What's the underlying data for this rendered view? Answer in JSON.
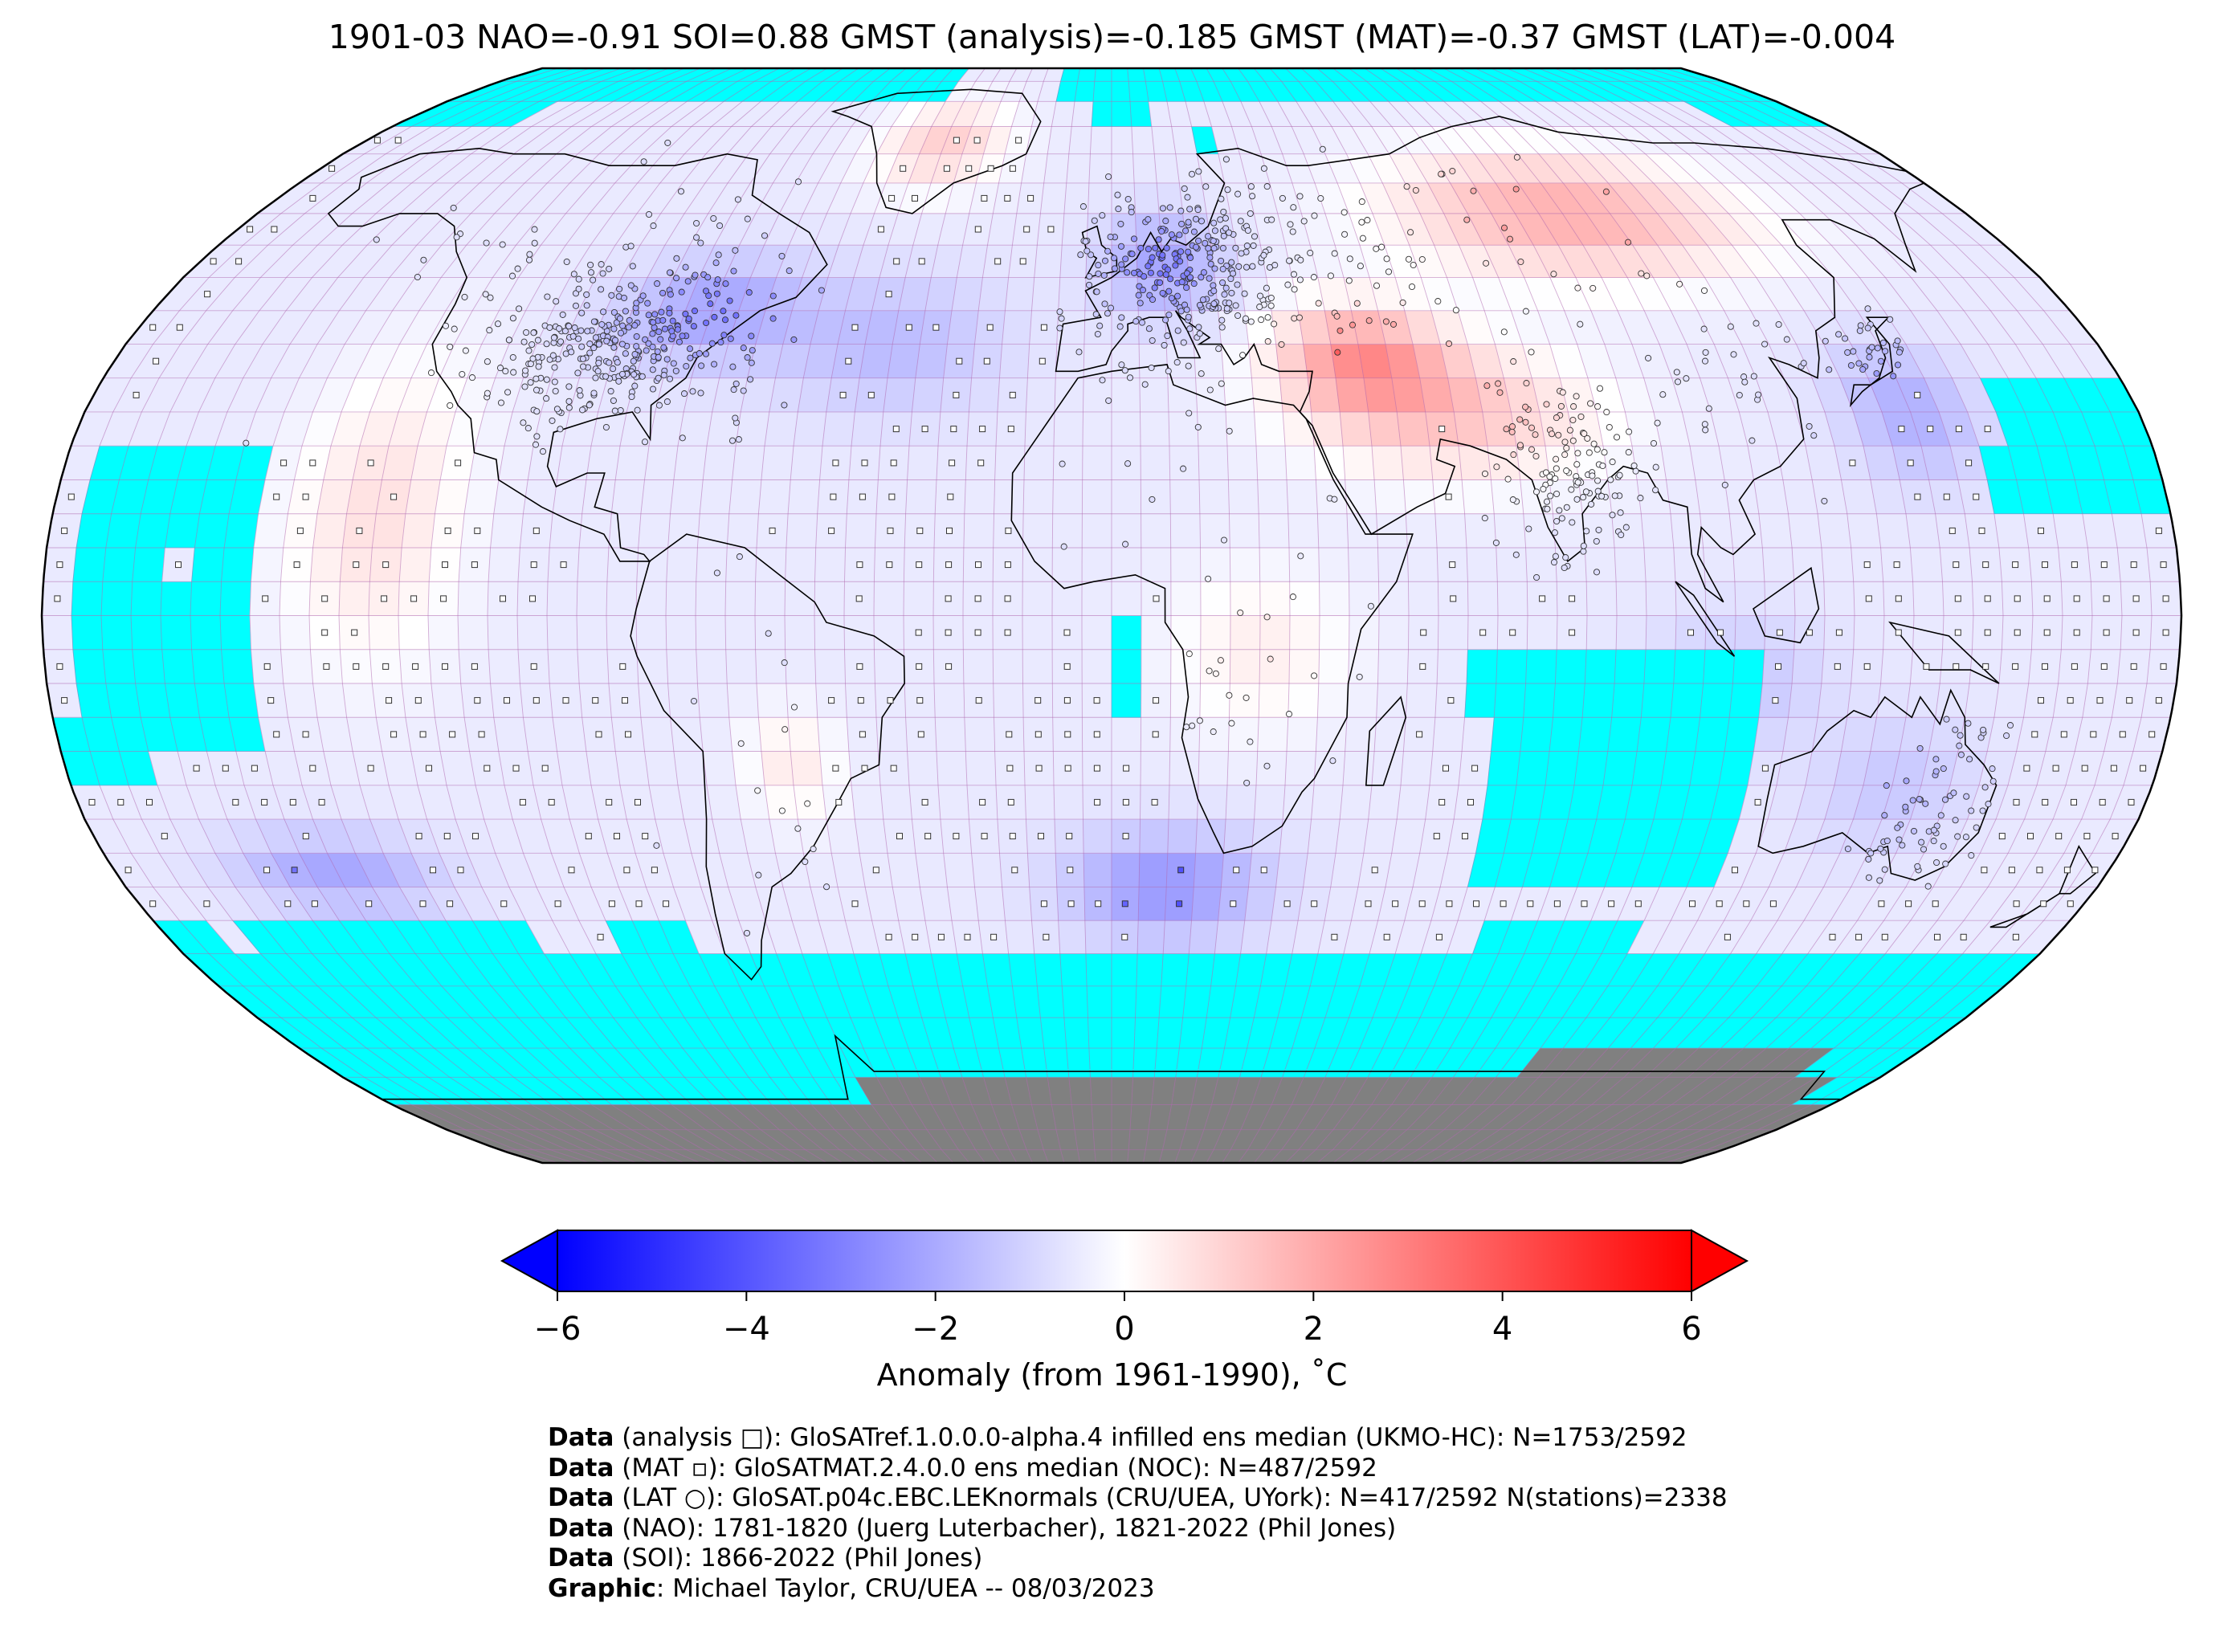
{
  "title": "1901-03 NAO=-0.91 SOI=0.88 GMST (analysis)=-0.185 GMST (MAT)=-0.37 GMST (LAT)=-0.004",
  "colorbar": {
    "label": "Anomaly (from 1961-1990), ˚C",
    "ticks": [
      "−6",
      "−4",
      "−2",
      "0",
      "2",
      "4",
      "6"
    ],
    "range": [
      -6,
      6
    ],
    "colors": {
      "min": "#0000ff",
      "mid": "#ffffff",
      "max": "#ff0000"
    }
  },
  "map": {
    "projection": "robinson",
    "no_data_color": "#00ffff",
    "land_ice_color": "#808080",
    "grid_line_color": "#b06ab0",
    "ocean_gradient_hint": "anomaly"
  },
  "credits": [
    {
      "bold": "Data",
      "rest": " (analysis □): GloSATref.1.0.0.0-alpha.4 infilled ens median (UKMO-HC): N=1753/2592"
    },
    {
      "bold": "Data",
      "rest": " (MAT ▫): GloSATMAT.2.4.0.0 ens median (NOC): N=487/2592"
    },
    {
      "bold": "Data",
      "rest": " (LAT ○): GloSAT.p04c.EBC.LEKnormals (CRU/UEA, UYork): N=417/2592 N(stations)=2338"
    },
    {
      "bold": "Data",
      "rest": " (NAO): 1781-1820 (Juerg Luterbacher), 1821-2022 (Phil Jones)"
    },
    {
      "bold": "Data",
      "rest": " (SOI): 1866-2022 (Phil Jones)"
    },
    {
      "bold": "Graphic",
      "rest": ": Michael Taylor, CRU/UEA -- 08/03/2023"
    }
  ]
}
